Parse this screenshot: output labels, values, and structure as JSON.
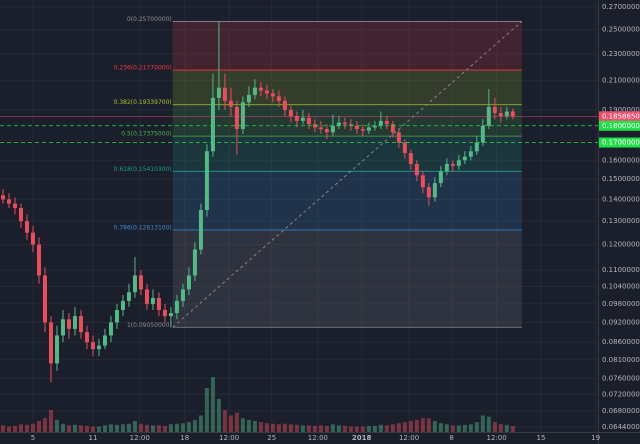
{
  "chart_data": {
    "type": "candlestick",
    "log_scale": true,
    "grid": true,
    "up_color": "#53b987",
    "down_color": "#eb4d5c",
    "xlim": [
      -0.5,
      99.2
    ],
    "ylim": [
      0.0633,
      0.2765
    ],
    "xticks": [
      {
        "value": 5,
        "label": "5"
      },
      {
        "value": 15,
        "label": "11"
      },
      {
        "value": 22.8,
        "label": "12:00"
      },
      {
        "value": 30.3,
        "label": "18"
      },
      {
        "value": 37.7,
        "label": "12:00"
      },
      {
        "value": 44.8,
        "label": "25"
      },
      {
        "value": 52.5,
        "label": "12:00"
      },
      {
        "value": 59.8,
        "label": "2018",
        "bold": true
      },
      {
        "value": 67.7,
        "label": "12:00"
      },
      {
        "value": 74.8,
        "label": "8"
      },
      {
        "value": 82.3,
        "label": "12:00"
      },
      {
        "value": 89.7,
        "label": "15"
      },
      {
        "value": 98.8,
        "label": "19"
      }
    ],
    "yticks": [
      {
        "value": 0.27,
        "label": "0.27000000"
      },
      {
        "value": 0.25,
        "label": "0.25000000"
      },
      {
        "value": 0.23,
        "label": "0.23000000"
      },
      {
        "value": 0.21,
        "label": "0.21000000"
      },
      {
        "value": 0.19,
        "label": "0.19000000"
      },
      {
        "value": 0.16,
        "label": "0.16000000"
      },
      {
        "value": 0.15,
        "label": "0.15000000"
      },
      {
        "value": 0.14,
        "label": "0.14000000"
      },
      {
        "value": 0.13,
        "label": "0.13000000"
      },
      {
        "value": 0.12,
        "label": "0.12000000"
      },
      {
        "value": 0.11,
        "label": "0.11000000"
      },
      {
        "value": 0.104,
        "label": "0.10400000"
      },
      {
        "value": 0.098,
        "label": "0.09800000"
      },
      {
        "value": 0.092,
        "label": "0.09200000"
      },
      {
        "value": 0.086,
        "label": "0.08600000"
      },
      {
        "value": 0.081,
        "label": "0.08100000"
      },
      {
        "value": 0.076,
        "label": "0.07600000"
      },
      {
        "value": 0.072,
        "label": "0.07200000"
      },
      {
        "value": 0.068,
        "label": "0.06800000"
      },
      {
        "value": 0.0644,
        "label": "0.06440000"
      }
    ],
    "candles": [
      [
        0.142,
        0.145,
        0.138,
        0.14
      ],
      [
        0.14,
        0.143,
        0.136,
        0.138
      ],
      [
        0.138,
        0.141,
        0.133,
        0.136
      ],
      [
        0.136,
        0.138,
        0.127,
        0.13
      ],
      [
        0.13,
        0.133,
        0.122,
        0.125
      ],
      [
        0.125,
        0.128,
        0.117,
        0.12
      ],
      [
        0.12,
        0.123,
        0.105,
        0.108
      ],
      [
        0.108,
        0.111,
        0.089,
        0.092
      ],
      [
        0.092,
        0.094,
        0.075,
        0.08
      ],
      [
        0.08,
        0.091,
        0.078,
        0.088
      ],
      [
        0.088,
        0.096,
        0.086,
        0.093
      ],
      [
        0.093,
        0.095,
        0.087,
        0.09
      ],
      [
        0.09,
        0.097,
        0.088,
        0.094
      ],
      [
        0.094,
        0.096,
        0.087,
        0.089
      ],
      [
        0.089,
        0.091,
        0.084,
        0.086
      ],
      [
        0.086,
        0.088,
        0.082,
        0.084
      ],
      [
        0.084,
        0.087,
        0.082,
        0.085
      ],
      [
        0.085,
        0.09,
        0.084,
        0.088
      ],
      [
        0.088,
        0.094,
        0.086,
        0.092
      ],
      [
        0.092,
        0.098,
        0.09,
        0.096
      ],
      [
        0.096,
        0.101,
        0.094,
        0.099
      ],
      [
        0.099,
        0.105,
        0.097,
        0.102
      ],
      [
        0.102,
        0.115,
        0.1,
        0.108
      ],
      [
        0.108,
        0.11,
        0.101,
        0.103
      ],
      [
        0.103,
        0.105,
        0.096,
        0.098
      ],
      [
        0.098,
        0.103,
        0.096,
        0.1
      ],
      [
        0.1,
        0.102,
        0.094,
        0.096
      ],
      [
        0.096,
        0.098,
        0.092,
        0.094
      ],
      [
        0.094,
        0.097,
        0.0905,
        0.095
      ],
      [
        0.095,
        0.101,
        0.093,
        0.099
      ],
      [
        0.099,
        0.105,
        0.097,
        0.103
      ],
      [
        0.103,
        0.111,
        0.101,
        0.108
      ],
      [
        0.108,
        0.121,
        0.106,
        0.118
      ],
      [
        0.118,
        0.138,
        0.116,
        0.135
      ],
      [
        0.135,
        0.169,
        0.132,
        0.165
      ],
      [
        0.165,
        0.215,
        0.162,
        0.198
      ],
      [
        0.198,
        0.257,
        0.19,
        0.205
      ],
      [
        0.205,
        0.215,
        0.19,
        0.196
      ],
      [
        0.196,
        0.205,
        0.186,
        0.192
      ],
      [
        0.192,
        0.196,
        0.163,
        0.178
      ],
      [
        0.178,
        0.199,
        0.175,
        0.195
      ],
      [
        0.195,
        0.206,
        0.192,
        0.2
      ],
      [
        0.2,
        0.211,
        0.197,
        0.205
      ],
      [
        0.205,
        0.209,
        0.199,
        0.203
      ],
      [
        0.203,
        0.207,
        0.197,
        0.201
      ],
      [
        0.201,
        0.204,
        0.195,
        0.199
      ],
      [
        0.199,
        0.203,
        0.192,
        0.196
      ],
      [
        0.196,
        0.199,
        0.186,
        0.19
      ],
      [
        0.19,
        0.193,
        0.182,
        0.186
      ],
      [
        0.186,
        0.189,
        0.179,
        0.183
      ],
      [
        0.183,
        0.19,
        0.181,
        0.185
      ],
      [
        0.185,
        0.188,
        0.178,
        0.181
      ],
      [
        0.181,
        0.184,
        0.176,
        0.179
      ],
      [
        0.179,
        0.183,
        0.175,
        0.178
      ],
      [
        0.178,
        0.181,
        0.172,
        0.176
      ],
      [
        0.176,
        0.187,
        0.174,
        0.18
      ],
      [
        0.18,
        0.186,
        0.178,
        0.182
      ],
      [
        0.182,
        0.185,
        0.178,
        0.181
      ],
      [
        0.181,
        0.184,
        0.177,
        0.18
      ],
      [
        0.18,
        0.183,
        0.175,
        0.178
      ],
      [
        0.178,
        0.181,
        0.174,
        0.177
      ],
      [
        0.177,
        0.182,
        0.175,
        0.179
      ],
      [
        0.179,
        0.183,
        0.177,
        0.18
      ],
      [
        0.18,
        0.189,
        0.178,
        0.183
      ],
      [
        0.183,
        0.186,
        0.178,
        0.181
      ],
      [
        0.181,
        0.183,
        0.173,
        0.176
      ],
      [
        0.176,
        0.178,
        0.167,
        0.17
      ],
      [
        0.17,
        0.172,
        0.161,
        0.164
      ],
      [
        0.164,
        0.166,
        0.155,
        0.158
      ],
      [
        0.158,
        0.16,
        0.149,
        0.152
      ],
      [
        0.152,
        0.154,
        0.143,
        0.146
      ],
      [
        0.146,
        0.148,
        0.137,
        0.141
      ],
      [
        0.141,
        0.151,
        0.139,
        0.148
      ],
      [
        0.148,
        0.157,
        0.146,
        0.154
      ],
      [
        0.154,
        0.161,
        0.152,
        0.158
      ],
      [
        0.158,
        0.16,
        0.154,
        0.157
      ],
      [
        0.157,
        0.163,
        0.155,
        0.16
      ],
      [
        0.16,
        0.165,
        0.158,
        0.162
      ],
      [
        0.162,
        0.168,
        0.16,
        0.165
      ],
      [
        0.165,
        0.174,
        0.163,
        0.17
      ],
      [
        0.17,
        0.184,
        0.168,
        0.18
      ],
      [
        0.18,
        0.204,
        0.178,
        0.192
      ],
      [
        0.192,
        0.198,
        0.184,
        0.188
      ],
      [
        0.188,
        0.192,
        0.182,
        0.186
      ],
      [
        0.186,
        0.192,
        0.184,
        0.189
      ],
      [
        0.189,
        0.191,
        0.184,
        0.18586505
      ]
    ],
    "volume": [
      12,
      10,
      11,
      14,
      13,
      15,
      20,
      25,
      40,
      22,
      15,
      12,
      13,
      12,
      11,
      10,
      10,
      12,
      14,
      13,
      14,
      15,
      20,
      15,
      13,
      12,
      12,
      11,
      14,
      15,
      16,
      18,
      22,
      30,
      80,
      100,
      60,
      40,
      30,
      35,
      25,
      22,
      20,
      18,
      16,
      15,
      14,
      15,
      14,
      13,
      12,
      12,
      11,
      12,
      11,
      14,
      12,
      11,
      10,
      10,
      10,
      11,
      11,
      13,
      12,
      14,
      16,
      18,
      20,
      22,
      25,
      25,
      20,
      16,
      14,
      12,
      12,
      13,
      14,
      18,
      30,
      28,
      18,
      14,
      13,
      11
    ],
    "fib": {
      "x": [
        28.3,
        86.5
      ],
      "levels": [
        {
          "value": 0.257,
          "label": "0(0.25700000)",
          "color": "#8a8d96"
        },
        {
          "value": 0.2177,
          "label": "0.236(0.21770000)",
          "color": "#f23645"
        },
        {
          "value": 0.193397,
          "label": "0.382(0.19339700)",
          "color": "#a6c12e"
        },
        {
          "value": 0.17375,
          "label": "0.5(0.17375000)",
          "color": "#4caf50"
        },
        {
          "value": 0.154103,
          "label": "0.618(0.15410300)",
          "color": "#1f9e8a"
        },
        {
          "value": 0.126131,
          "label": "0.786(0.12613100)",
          "color": "#3a8fd8"
        },
        {
          "value": 0.0905,
          "label": "1(0.09050000)",
          "color": "#8a8d96"
        }
      ]
    },
    "price_lines": [
      {
        "value": 0.18586505,
        "label": "0.18586505",
        "color": "#f0506e",
        "dashed": false
      },
      {
        "value": 0.18,
        "label": "0.18000000",
        "color": "#22e04a",
        "dashed": true
      },
      {
        "value": 0.17,
        "label": "0.17000000",
        "color": "#22e04a",
        "dashed": true
      }
    ]
  }
}
